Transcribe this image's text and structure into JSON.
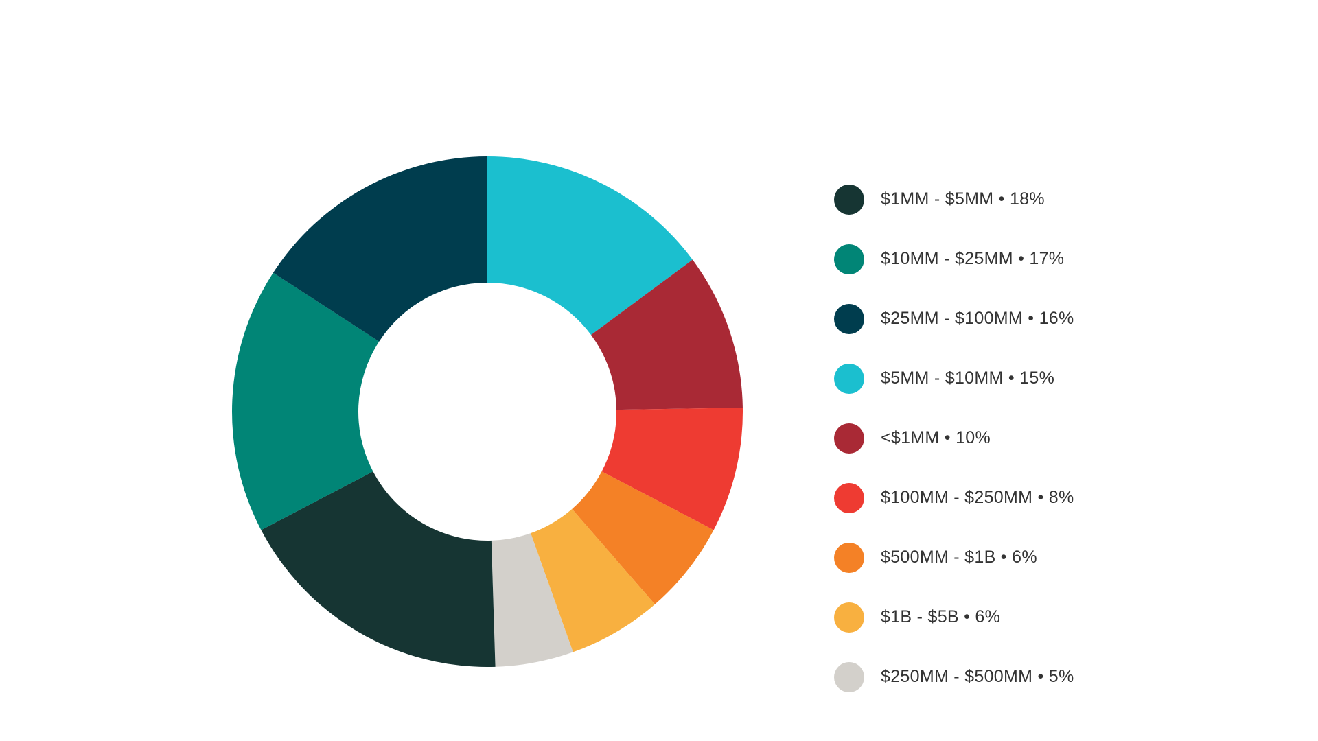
{
  "chart_data": {
    "type": "pie",
    "subtype": "donut",
    "title": "",
    "legend_position": "right",
    "slices": [
      {
        "label": "$1MM - $5MM • 18%",
        "value": 18,
        "color": "#163533"
      },
      {
        "label": "$10MM - $25MM • 17%",
        "value": 17,
        "color": "#018576"
      },
      {
        "label": "$25MM - $100MM • 16%",
        "value": 16,
        "color": "#003d4e"
      },
      {
        "label": "$5MM - $10MM • 15%",
        "value": 15,
        "color": "#1bbfcf"
      },
      {
        "label": "<$1MM • 10%",
        "value": 10,
        "color": "#a92935"
      },
      {
        "label": "$100MM - $250MM • 8%",
        "value": 8,
        "color": "#ee3b32"
      },
      {
        "label": "$500MM - $1B • 6%",
        "value": 6,
        "color": "#f48126"
      },
      {
        "label": "$1B - $5B • 6%",
        "value": 6,
        "color": "#f8b040"
      },
      {
        "label": "$250MM - $500MM • 5%",
        "value": 5,
        "color": "#d3d0cb"
      }
    ]
  }
}
